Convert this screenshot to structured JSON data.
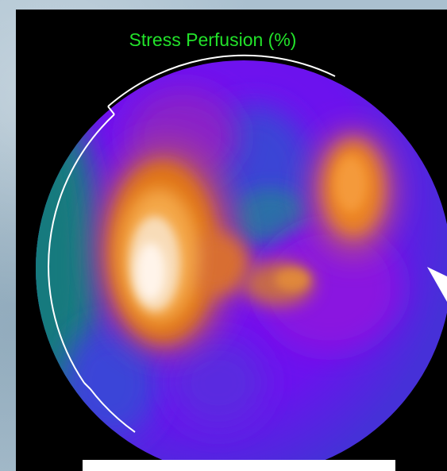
{
  "title": "Stress Perfusion (%)",
  "colors": {
    "background": "#000000",
    "title": "#22e22a",
    "arc": "#ffffff",
    "marker": "#ffffff"
  }
}
